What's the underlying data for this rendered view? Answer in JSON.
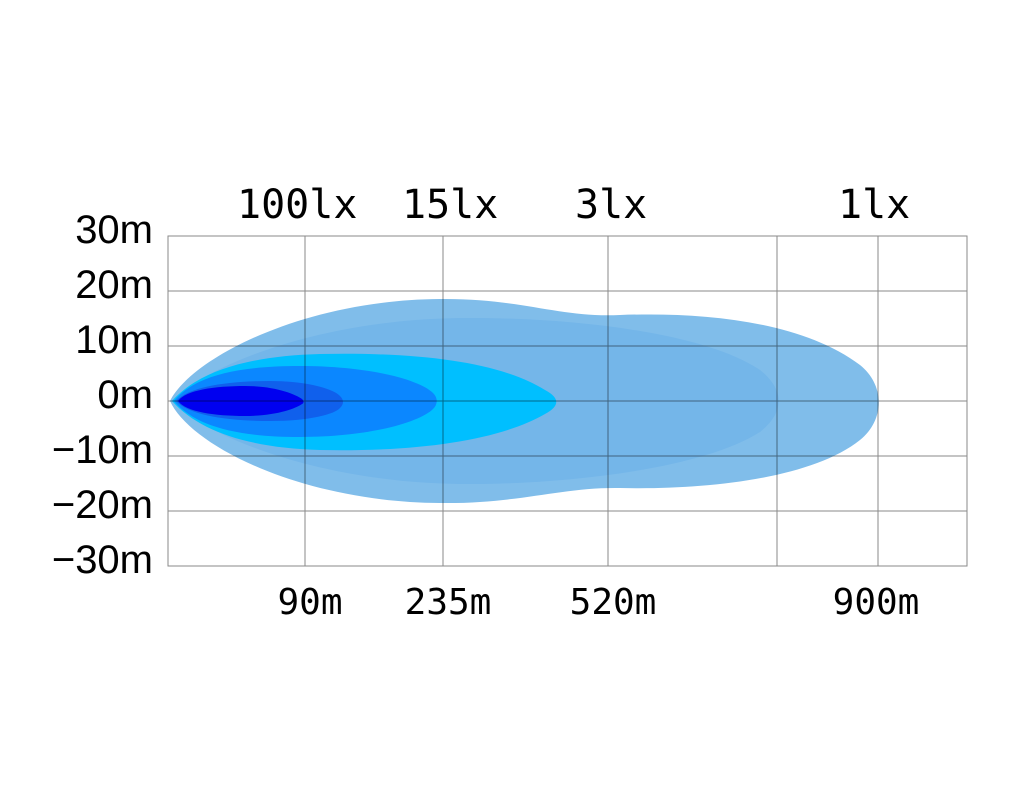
{
  "chart_data": {
    "type": "area",
    "title": "",
    "xlabel": "",
    "ylabel": "",
    "lux_labels": [
      "100lx",
      "15lx",
      "3lx",
      "1lx"
    ],
    "x_ticks": [
      "90m",
      "235m",
      "520m",
      "900m"
    ],
    "y_ticks": [
      "30m",
      "20m",
      "10m",
      "0m",
      "-10m",
      "-20m",
      "-30m"
    ],
    "y_values": [
      30,
      20,
      10,
      0,
      -10,
      -20,
      -30
    ],
    "ylim": [
      -30,
      30
    ],
    "grid": true,
    "colors": {
      "outer_1lx": "#80bdea",
      "outer_1lx_inner": "#74b6e9",
      "zone_3lx": "#00bfff",
      "zone_15lx": "#0b87ff",
      "zone_40lx": "#1060ec",
      "zone_100lx": "#0000f0"
    }
  }
}
